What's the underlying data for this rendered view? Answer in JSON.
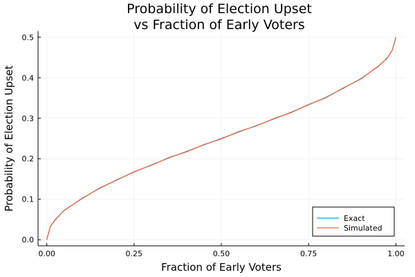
{
  "chart_data": {
    "type": "line",
    "title_line1": "Probability of Election Upset",
    "title_line2": "vs Fraction of Early Voters",
    "xlabel": "Fraction of Early Voters",
    "ylabel": "Probability of Election Upset",
    "xlim": [
      -0.025,
      1.025
    ],
    "ylim": [
      -0.015,
      0.515
    ],
    "x_ticks": [
      0.0,
      0.25,
      0.5,
      0.75,
      1.0
    ],
    "x_tick_labels": [
      "0.00",
      "0.25",
      "0.50",
      "0.75",
      "1.00"
    ],
    "y_ticks": [
      0.0,
      0.1,
      0.2,
      0.3,
      0.4,
      0.5
    ],
    "y_tick_labels": [
      "0.0",
      "0.1",
      "0.2",
      "0.3",
      "0.4",
      "0.5"
    ],
    "grid": true,
    "legend_position": "bottom-right",
    "series": [
      {
        "name": "Exact",
        "color": "#009AFA",
        "x": [
          0.0,
          0.01,
          0.025,
          0.05,
          0.1,
          0.15,
          0.2,
          0.25,
          0.3,
          0.35,
          0.4,
          0.45,
          0.5,
          0.55,
          0.6,
          0.65,
          0.7,
          0.75,
          0.8,
          0.85,
          0.9,
          0.95,
          0.975,
          0.99,
          1.0
        ],
        "y": [
          0.0,
          0.032,
          0.051,
          0.072,
          0.102,
          0.126,
          0.148,
          0.167,
          0.185,
          0.202,
          0.218,
          0.234,
          0.25,
          0.266,
          0.282,
          0.298,
          0.315,
          0.333,
          0.352,
          0.374,
          0.398,
          0.428,
          0.449,
          0.468,
          0.5
        ]
      },
      {
        "name": "Simulated",
        "color": "#E26F46",
        "x": [
          0.0,
          0.01,
          0.025,
          0.05,
          0.1,
          0.15,
          0.2,
          0.25,
          0.3,
          0.35,
          0.4,
          0.45,
          0.5,
          0.55,
          0.6,
          0.65,
          0.7,
          0.75,
          0.8,
          0.85,
          0.9,
          0.95,
          0.975,
          0.99,
          1.0
        ],
        "y": [
          0.0,
          0.033,
          0.05,
          0.073,
          0.101,
          0.127,
          0.147,
          0.168,
          0.184,
          0.203,
          0.217,
          0.235,
          0.249,
          0.267,
          0.281,
          0.299,
          0.314,
          0.334,
          0.351,
          0.375,
          0.397,
          0.429,
          0.448,
          0.469,
          0.5
        ]
      }
    ]
  }
}
